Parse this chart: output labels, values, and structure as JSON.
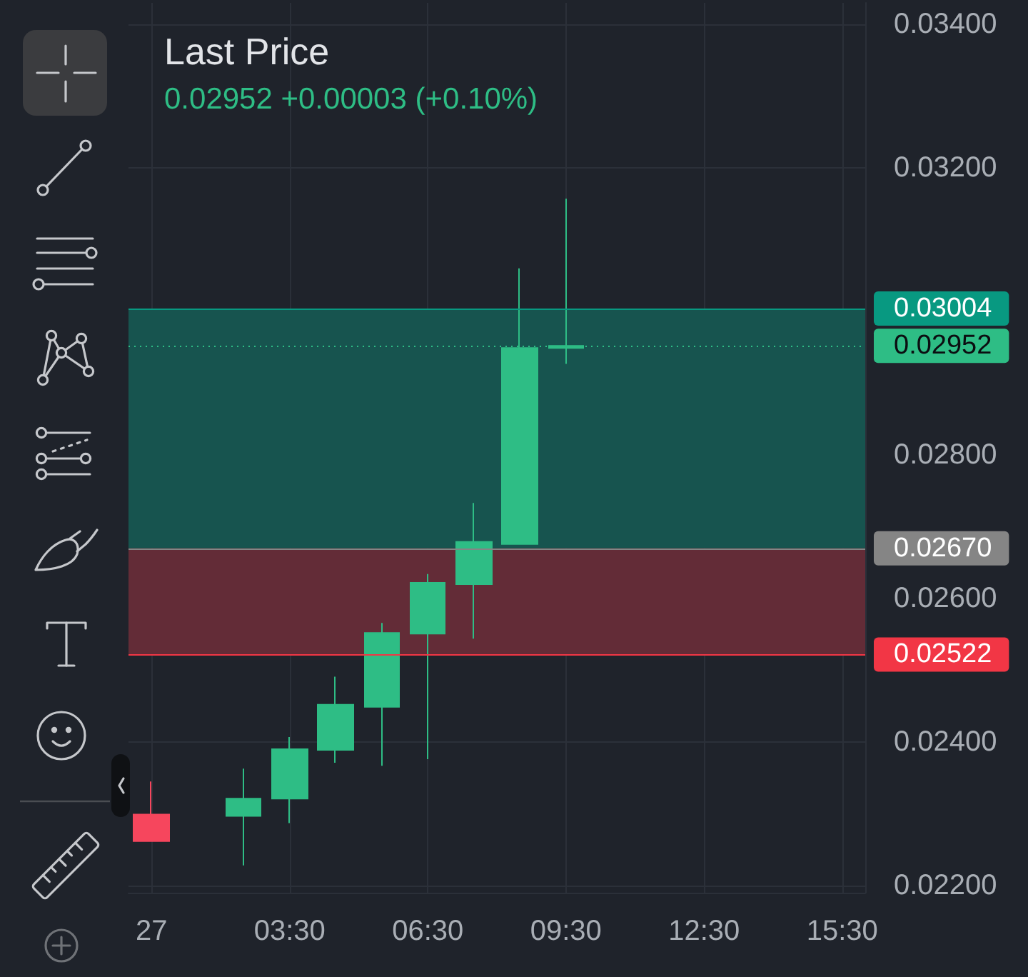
{
  "chart_data": {
    "type": "candlestick",
    "title": "Last Price",
    "subtitle": "0.02952 +0.00003 (+0.10%)",
    "categories": [
      "27",
      null,
      null,
      "03:30",
      null,
      null,
      "06:30",
      null,
      null,
      "09:30",
      null,
      null,
      "12:30",
      null,
      null,
      "15:30"
    ],
    "ohlc": [
      [
        0.02299,
        0.02345,
        0.02262,
        0.02262
      ],
      null,
      [
        0.02297,
        0.02363,
        0.02228,
        0.02321
      ],
      [
        0.02321,
        0.02407,
        0.02287,
        0.0239
      ],
      [
        0.02389,
        0.02491,
        0.02371,
        0.02452
      ],
      [
        0.02449,
        0.02566,
        0.02367,
        0.02552
      ],
      [
        0.02551,
        0.02634,
        0.02376,
        0.02622
      ],
      [
        0.0262,
        0.02733,
        0.02544,
        0.02679
      ],
      [
        0.02676,
        0.0306,
        0.02676,
        0.02949
      ],
      [
        0.02949,
        0.03157,
        0.02927,
        0.02952
      ],
      null,
      null,
      null,
      null,
      null,
      null
    ],
    "colors": [
      "#f6465d",
      null,
      "#2ebd85",
      "#2ebd85",
      "#2ebd85",
      "#2ebd85",
      "#2ebd85",
      "#2ebd85",
      "#2ebd85",
      "#2ebd85",
      null,
      null,
      null,
      null,
      null,
      null
    ],
    "ylim": [
      0.0219,
      0.0343
    ],
    "yticks": [
      {
        "value": 0.022,
        "label": "0.02200"
      },
      {
        "value": 0.024,
        "label": "0.02400"
      },
      {
        "value": 0.026,
        "label": "0.02600"
      },
      {
        "value": 0.028,
        "label": "0.02800"
      },
      {
        "value": 0.03,
        "label": null
      },
      {
        "value": 0.032,
        "label": "0.03200"
      },
      {
        "value": 0.034,
        "label": "0.03400"
      }
    ],
    "grid": true,
    "ref_lines": [
      {
        "axis": "y",
        "value": 0.03004,
        "label": "0.03004",
        "color": "#089981",
        "line_style": "solid"
      },
      {
        "axis": "y",
        "value": 0.02952,
        "label": "0.02952",
        "color": "#2ebd85",
        "line_style": "dotted"
      },
      {
        "axis": "y",
        "value": 0.0267,
        "label": "0.02670",
        "color": "#858585",
        "line_style": "solid"
      },
      {
        "axis": "y",
        "value": 0.02522,
        "label": "0.02522",
        "color": "#f23645",
        "line_style": "solid"
      }
    ],
    "bands": [
      {
        "axis": "y",
        "from": 0.0267,
        "to": 0.03004,
        "color": "#17544f"
      },
      {
        "axis": "y",
        "from": 0.02522,
        "to": 0.0267,
        "color": "#632c37"
      }
    ]
  }
}
